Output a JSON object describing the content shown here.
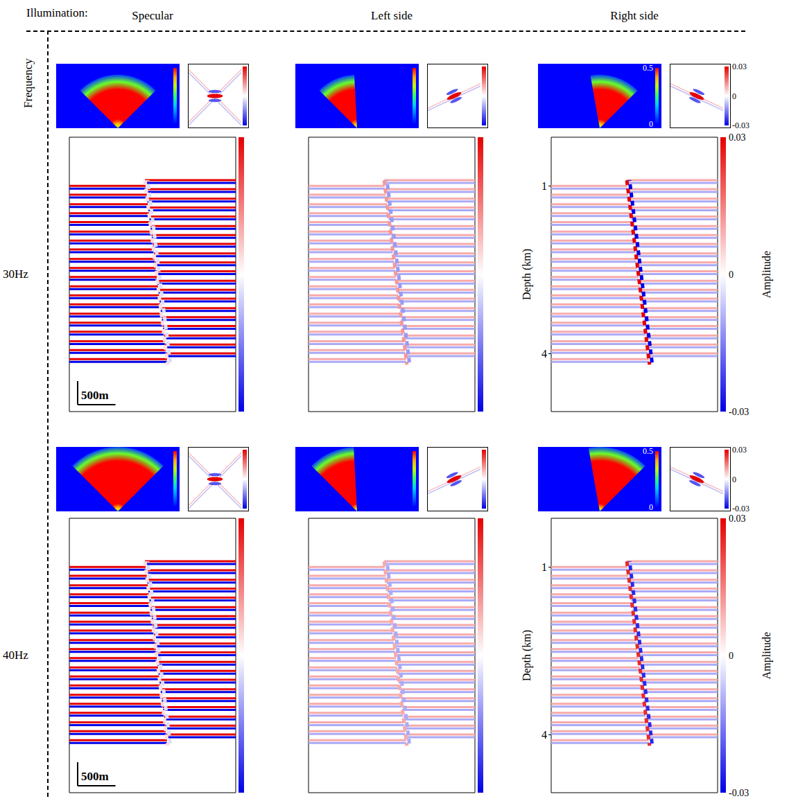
{
  "header": {
    "label": "Illumination:",
    "row_title": "Frequency"
  },
  "model": {
    "fault": {
      "x": [
        1000,
        1300
      ],
      "depth": [
        0.9,
        4.2
      ]
    },
    "reflectors": {
      "left": [
        1.0,
        1.16,
        1.33,
        1.49,
        1.65,
        1.82,
        1.98,
        2.14,
        2.31,
        2.47,
        2.63,
        2.8,
        2.96,
        3.12,
        3.29,
        3.45,
        3.61,
        3.78,
        3.94,
        4.1
      ],
      "right": [
        0.9,
        1.06,
        1.23,
        1.39,
        1.55,
        1.72,
        1.88,
        2.04,
        2.21,
        2.37,
        2.53,
        2.7,
        2.86,
        3.02,
        3.19,
        3.35,
        3.51,
        3.68,
        3.84,
        4.0
      ]
    }
  },
  "chart_data": [
    {
      "type": "section",
      "frequency": "30Hz",
      "illumination": "Specular",
      "illumination_map": {
        "angles": [
          -45,
          45
        ],
        "rlim": [
          0,
          1
        ],
        "radius": [
          0,
          0.06,
          0.14,
          0.6,
          0.72,
          0.83
        ],
        "values": [
          0.3,
          0.4,
          0.5,
          0.5,
          0.28,
          0.05
        ],
        "range": [
          0,
          0.5
        ]
      },
      "psf": {
        "dip": 0,
        "arms": [
          45,
          -45
        ],
        "extent": [
          -1,
          1
        ],
        "peak": 0.03,
        "side_lobe": -0.02,
        "arm_amplitude": 0.008,
        "range": [
          -0.03,
          0.03
        ]
      },
      "section": {
        "xlim": [
          0,
          2200
        ],
        "ylim": [
          0.13,
          5.04
        ],
        "tick_labels": false,
        "reflector_amplitude": 0.03,
        "fault_amplitude": 0.004,
        "colorbar": {
          "range": [
            -0.03,
            0.03
          ]
        },
        "scale_bar": {
          "length": 500,
          "label": "500m"
        }
      }
    },
    {
      "type": "section",
      "frequency": "30Hz",
      "illumination": "Left side",
      "illumination_map": {
        "angles": [
          -45,
          -3
        ],
        "rlim": [
          0,
          1
        ],
        "radius": [
          0,
          0.06,
          0.14,
          0.6,
          0.72,
          0.83
        ],
        "values": [
          0.3,
          0.4,
          0.5,
          0.5,
          0.28,
          0.05
        ],
        "range": [
          0,
          0.5
        ]
      },
      "psf": {
        "dip": 25,
        "arms": [
          25
        ],
        "extent": [
          -1,
          1
        ],
        "peak": 0.03,
        "side_lobe": -0.02,
        "arm_amplitude": 0.008,
        "range": [
          -0.03,
          0.03
        ]
      },
      "section": {
        "xlim": [
          0,
          2200
        ],
        "ylim": [
          0.13,
          5.04
        ],
        "tick_labels": false,
        "reflector_amplitude": 0.01,
        "fault_amplitude": 0.012,
        "colorbar": {
          "range": [
            -0.03,
            0.03
          ]
        }
      }
    },
    {
      "type": "section",
      "frequency": "30Hz",
      "illumination": "Right side",
      "illumination_map": {
        "angles": [
          -10,
          45
        ],
        "rlim": [
          0,
          1
        ],
        "radius": [
          0,
          0.06,
          0.14,
          0.6,
          0.72,
          0.83
        ],
        "values": [
          0.3,
          0.4,
          0.5,
          0.5,
          0.28,
          0.05
        ],
        "range": [
          0,
          0.5
        ],
        "ticks": [
          0.5,
          0
        ]
      },
      "psf": {
        "dip": -25,
        "arms": [
          -25
        ],
        "extent": [
          -1,
          1
        ],
        "peak": 0.03,
        "side_lobe": -0.02,
        "arm_amplitude": 0.008,
        "range": [
          -0.03,
          0.03
        ],
        "ticks": [
          0.03,
          0,
          -0.03
        ]
      },
      "section": {
        "xlim": [
          0,
          2200
        ],
        "ylim": [
          0.13,
          5.04
        ],
        "yticks": [
          1,
          4
        ],
        "y_label": "Depth (km)",
        "tick_labels": "y",
        "reflector_amplitude": 0.01,
        "fault_amplitude": 0.03,
        "colorbar": {
          "range": [
            -0.03,
            0.03
          ],
          "ticks": [
            0.03,
            0,
            -0.03
          ],
          "label": "Amplitude"
        }
      }
    },
    {
      "type": "section",
      "frequency": "40Hz",
      "illumination": "Specular",
      "illumination_map": {
        "angles": [
          -45,
          45
        ],
        "rlim": [
          0,
          1
        ],
        "radius": [
          0,
          0.05,
          0.12,
          0.78,
          0.9,
          1.0
        ],
        "values": [
          0.3,
          0.4,
          0.5,
          0.5,
          0.28,
          0.05
        ],
        "range": [
          0,
          0.5
        ]
      },
      "psf": {
        "dip": 0,
        "arms": [
          45,
          -45
        ],
        "extent": [
          -1,
          1
        ],
        "peak": 0.03,
        "side_lobe": -0.02,
        "arm_amplitude": 0.008,
        "range": [
          -0.03,
          0.03
        ]
      },
      "section": {
        "xlim": [
          0,
          2200
        ],
        "ylim": [
          0.13,
          5.04
        ],
        "tick_labels": false,
        "reflector_amplitude": 0.03,
        "fault_amplitude": 0.004,
        "colorbar": {
          "range": [
            -0.03,
            0.03
          ]
        },
        "scale_bar": {
          "length": 500,
          "label": "500m"
        }
      }
    },
    {
      "type": "section",
      "frequency": "40Hz",
      "illumination": "Left side",
      "illumination_map": {
        "angles": [
          -45,
          -3
        ],
        "rlim": [
          0,
          1
        ],
        "radius": [
          0,
          0.05,
          0.12,
          0.78,
          0.9,
          1.0
        ],
        "values": [
          0.3,
          0.4,
          0.5,
          0.5,
          0.28,
          0.05
        ],
        "range": [
          0,
          0.5
        ]
      },
      "psf": {
        "dip": 25,
        "arms": [
          25
        ],
        "extent": [
          -1,
          1
        ],
        "peak": 0.03,
        "side_lobe": -0.02,
        "arm_amplitude": 0.008,
        "range": [
          -0.03,
          0.03
        ]
      },
      "section": {
        "xlim": [
          0,
          2200
        ],
        "ylim": [
          0.13,
          5.04
        ],
        "tick_labels": false,
        "reflector_amplitude": 0.01,
        "fault_amplitude": 0.01,
        "colorbar": {
          "range": [
            -0.03,
            0.03
          ]
        }
      }
    },
    {
      "type": "section",
      "frequency": "40Hz",
      "illumination": "Right side",
      "illumination_map": {
        "angles": [
          -10,
          45
        ],
        "rlim": [
          0,
          1
        ],
        "radius": [
          0,
          0.05,
          0.12,
          0.78,
          0.9,
          1.0
        ],
        "values": [
          0.3,
          0.4,
          0.5,
          0.5,
          0.28,
          0.05
        ],
        "range": [
          0,
          0.5
        ],
        "ticks": [
          0.5,
          0
        ]
      },
      "psf": {
        "dip": -25,
        "arms": [
          -25
        ],
        "extent": [
          -1,
          1
        ],
        "peak": 0.03,
        "side_lobe": -0.02,
        "arm_amplitude": 0.008,
        "range": [
          -0.03,
          0.03
        ],
        "ticks": [
          0.03,
          0,
          -0.03
        ]
      },
      "section": {
        "xlim": [
          0,
          2200
        ],
        "ylim": [
          0.13,
          5.04
        ],
        "yticks": [
          1,
          4
        ],
        "y_label": "Depth (km)",
        "tick_labels": "y",
        "reflector_amplitude": 0.01,
        "fault_amplitude": 0.025,
        "colorbar": {
          "range": [
            -0.03,
            0.03
          ],
          "ticks": [
            0.03,
            0,
            -0.03
          ],
          "label": "Amplitude"
        }
      }
    }
  ]
}
